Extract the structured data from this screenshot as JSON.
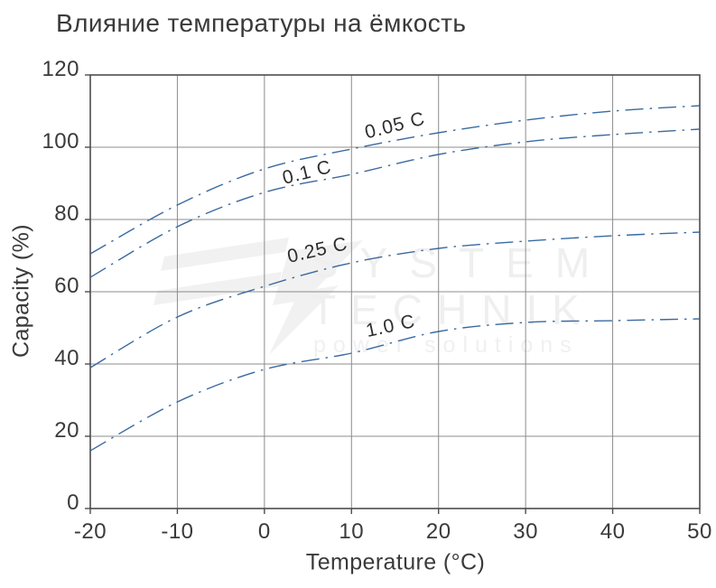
{
  "watermark": {
    "line1": "SYSTEM",
    "line2": "TECHNIK",
    "tagline": "power solutions"
  },
  "chart_data": {
    "type": "line",
    "title": "Влияние температуры на ёмкость",
    "xlabel": "Temperature (°C)",
    "ylabel": "Capacity (%)",
    "x": [
      -20,
      -10,
      0,
      10,
      20,
      30,
      40,
      50
    ],
    "xlim": [
      -20,
      50
    ],
    "ylim": [
      0,
      120
    ],
    "x_ticks": [
      -20,
      -10,
      0,
      10,
      20,
      30,
      40,
      50
    ],
    "y_ticks": [
      0,
      20,
      40,
      60,
      80,
      100,
      120
    ],
    "grid": true,
    "legend_position": "inline-curve-labels",
    "line_style": "dash-dot",
    "line_color": "#3a6aa0",
    "grid_color": "#8c8c8c",
    "frame_color": "#4c4c4c",
    "text_color": "#3a3a3a",
    "line_dash": [
      20,
      7,
      2.5,
      7
    ],
    "series": [
      {
        "name": "0.05 C",
        "values": [
          70.5,
          84,
          94,
          99.5,
          104,
          107.5,
          110,
          111.5
        ],
        "label": {
          "x": 15,
          "y": 106,
          "angle": -14
        }
      },
      {
        "name": "0.1 C",
        "values": [
          64,
          78,
          87.5,
          92.5,
          98,
          101.5,
          103.5,
          105
        ],
        "label": {
          "x": 4.9,
          "y": 93,
          "angle": -14
        }
      },
      {
        "name": "0.25 C",
        "values": [
          39,
          53,
          61.5,
          68,
          72,
          74,
          75.5,
          76.5
        ],
        "label": {
          "x": 6.1,
          "y": 71.5,
          "angle": -13
        }
      },
      {
        "name": "1.0 C",
        "values": [
          16,
          29.5,
          38.5,
          43,
          49,
          51.5,
          52,
          52.5
        ],
        "label": {
          "x": 14.5,
          "y": 50.5,
          "angle": -12
        }
      }
    ]
  }
}
